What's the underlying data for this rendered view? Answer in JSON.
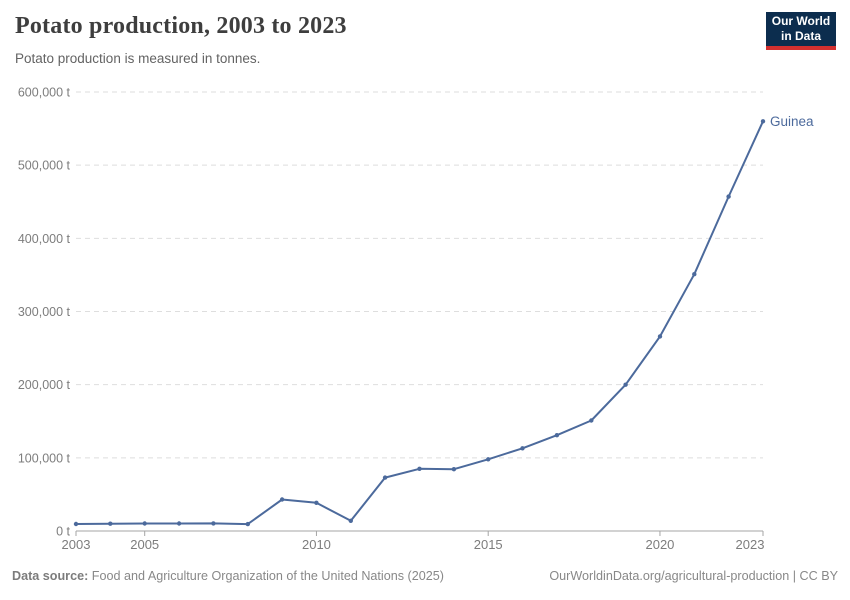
{
  "header": {
    "title": "Potato production, 2003 to 2023",
    "subtitle": "Potato production is measured in tonnes."
  },
  "logo": {
    "line1": "Our World",
    "line2": "in Data"
  },
  "footer": {
    "source_label": "Data source:",
    "source_text": " Food and Agriculture Organization of the United Nations (2025)",
    "credit": "OurWorldinData.org/agricultural-production | CC BY"
  },
  "colors": {
    "series": "#4c6a9c",
    "grid": "#dedede",
    "axis": "#a5a5a5",
    "tick_label": "#7d7d7d",
    "logo_bg": "#0c2d4e",
    "logo_red": "#d3302f"
  },
  "chart_data": {
    "type": "line",
    "title": "Potato production, 2003 to 2023",
    "subtitle": "Potato production is measured in tonnes.",
    "unit": "tonnes",
    "x": [
      2003,
      2004,
      2005,
      2006,
      2007,
      2008,
      2009,
      2010,
      2011,
      2012,
      2013,
      2014,
      2015,
      2016,
      2017,
      2018,
      2019,
      2020,
      2021,
      2022,
      2023
    ],
    "series": [
      {
        "name": "Guinea",
        "color": "#4c6a9c",
        "values": [
          9500,
          10000,
          10300,
          10200,
          10400,
          9400,
          43000,
          38500,
          14000,
          73000,
          85000,
          84500,
          98000,
          113000,
          131000,
          151000,
          200000,
          266000,
          351000,
          457000,
          560000
        ]
      }
    ],
    "ylim": [
      0,
      600000
    ],
    "yticks": [
      0,
      100000,
      200000,
      300000,
      400000,
      500000,
      600000
    ],
    "ytick_labels": [
      "0 t",
      "100,000 t",
      "200,000 t",
      "300,000 t",
      "400,000 t",
      "500,000 t",
      "600,000 t"
    ],
    "xtick_years": [
      2003,
      2005,
      2010,
      2015,
      2020,
      2023
    ],
    "grid": "horizontal-dashed",
    "legend": "end-of-line-label"
  }
}
